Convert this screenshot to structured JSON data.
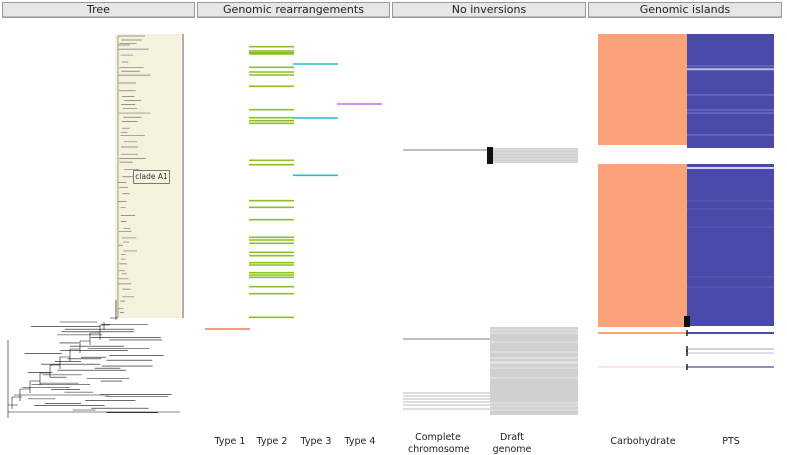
{
  "headers": {
    "tree": "Tree",
    "rearrangements": "Genomic rearrangements",
    "inversions": "No inversions",
    "islands": "Genomic islands"
  },
  "clade_label": "clade A1",
  "rearrangement_types": [
    "Type 1",
    "Type 2",
    "Type 3",
    "Type 4"
  ],
  "inversion_columns": [
    "Complete chromosome",
    "Draft genome"
  ],
  "island_columns": [
    "Carbohydrate",
    "PTS"
  ],
  "colors": {
    "type1": "#f07860",
    "type2": "#8cbf26",
    "type3": "#20c0d0",
    "type4": "#cc66ee",
    "carbohydrate": "#fba27a",
    "pts": "#4a4aaa",
    "clade_bg": "#f4f1dc",
    "gray": "#d0d0d0"
  }
}
